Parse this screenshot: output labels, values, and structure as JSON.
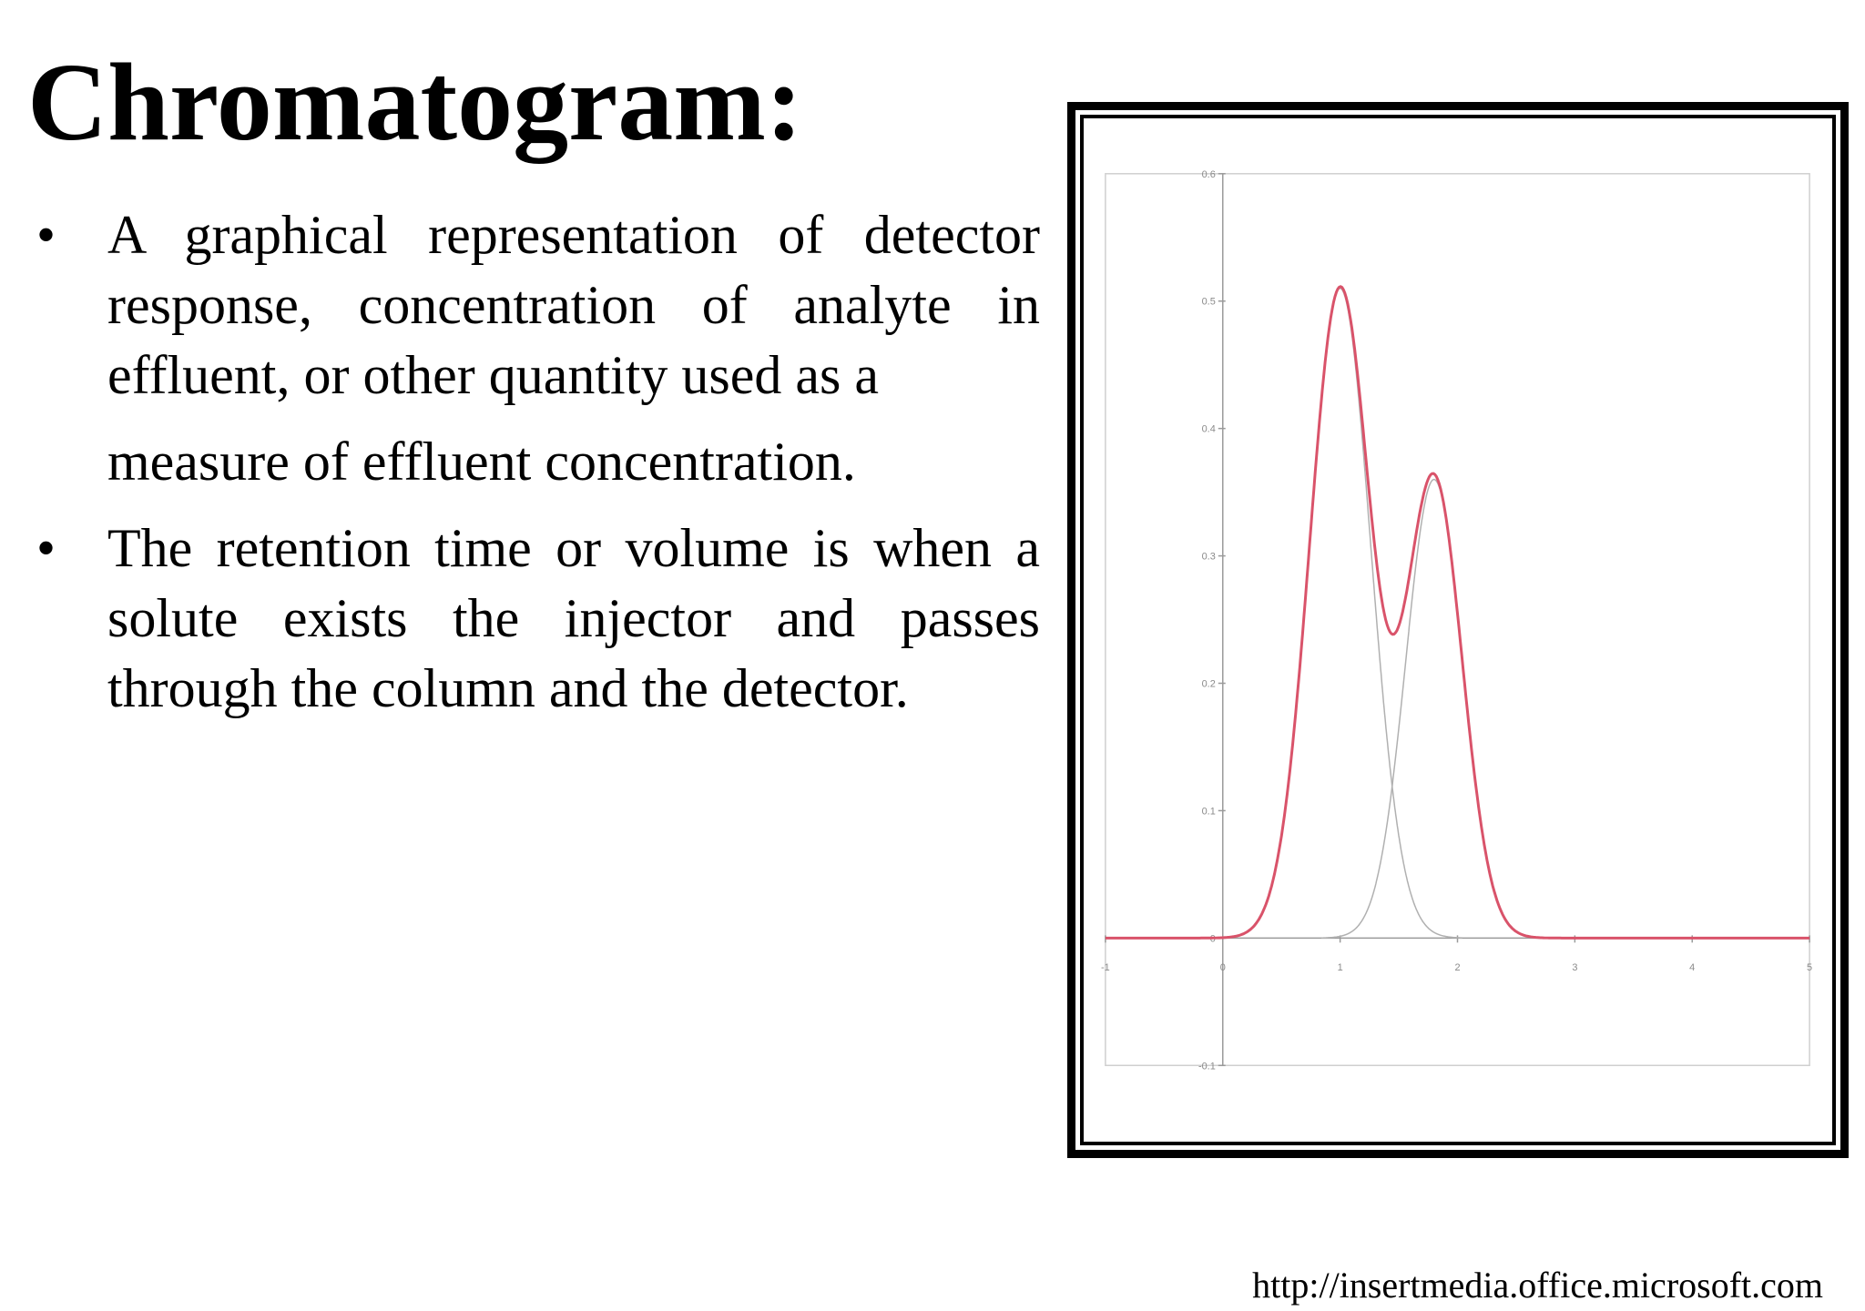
{
  "slide": {
    "title": "Chromatogram:",
    "bullets": [
      {
        "marker": "•",
        "text": "A graphical representation of detector response, concentration of analyte in effluent, or other quantity used as a",
        "continuation": "measure of effluent concentration."
      },
      {
        "marker": "•",
        "text": "The retention time or volume is when a solute exists the injector and passes through the column and the detector."
      }
    ],
    "source": "http://insertmedia.office.microsoft.com"
  },
  "chart_data": {
    "type": "line",
    "xlim": [
      -1,
      5
    ],
    "ylim": [
      -0.1,
      0.6
    ],
    "x_ticks": [
      -1,
      0,
      1,
      2,
      3,
      4,
      5
    ],
    "y_ticks": [
      -0.1,
      0,
      0.1,
      0.2,
      0.3,
      0.4,
      0.5,
      0.6
    ],
    "grid": false,
    "legend": "none",
    "series": [
      {
        "kind": "sum",
        "color": "#d9536a",
        "components": [
          0,
          1
        ]
      },
      {
        "kind": "component",
        "color": "#b0b0b0",
        "peak": {
          "center": 1.0,
          "height": 0.51,
          "sigma": 0.26
        }
      },
      {
        "kind": "component",
        "color": "#b0b0b0",
        "peak": {
          "center": 1.8,
          "height": 0.36,
          "sigma": 0.24
        }
      }
    ]
  }
}
